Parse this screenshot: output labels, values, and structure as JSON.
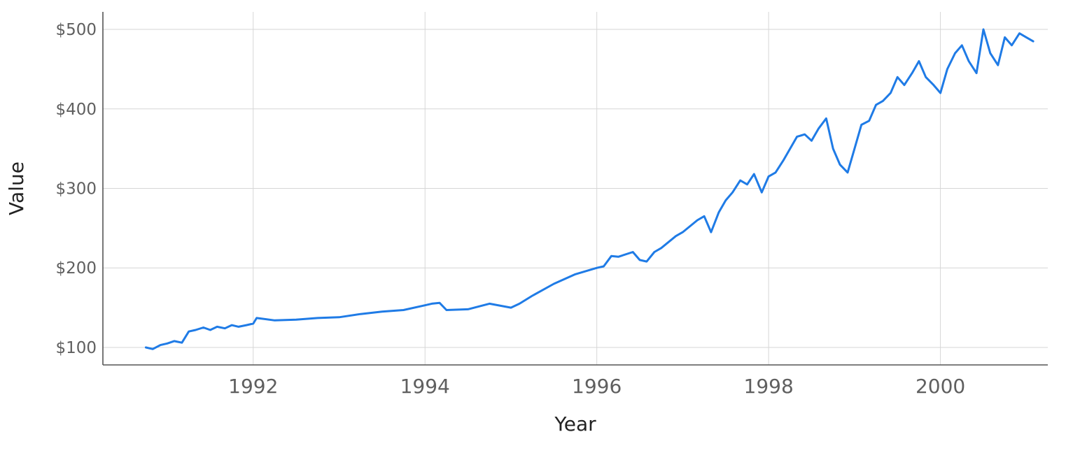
{
  "chart_data": {
    "type": "line",
    "title": "",
    "xlabel": "Year",
    "ylabel": "Value",
    "xlim": [
      1990.25,
      2001.25
    ],
    "ylim": [
      78,
      522
    ],
    "x_ticks": [
      1992,
      1994,
      1996,
      1998,
      2000
    ],
    "x_tick_labels": [
      "1992",
      "1994",
      "1996",
      "1998",
      "2000"
    ],
    "y_ticks": [
      100,
      200,
      300,
      400,
      500
    ],
    "y_tick_labels": [
      "$100",
      "$200",
      "$300",
      "$400",
      "$500"
    ],
    "grid": true,
    "legend": "none",
    "series": [
      {
        "color": "#1f7be6",
        "points": [
          [
            1990.75,
            100
          ],
          [
            1990.83,
            98
          ],
          [
            1990.92,
            103
          ],
          [
            1991.0,
            105
          ],
          [
            1991.08,
            108
          ],
          [
            1991.17,
            106
          ],
          [
            1991.25,
            120
          ],
          [
            1991.33,
            122
          ],
          [
            1991.42,
            125
          ],
          [
            1991.5,
            122
          ],
          [
            1991.58,
            126
          ],
          [
            1991.67,
            124
          ],
          [
            1991.75,
            128
          ],
          [
            1991.83,
            126
          ],
          [
            1991.92,
            128
          ],
          [
            1992.0,
            130
          ],
          [
            1992.04,
            137
          ],
          [
            1992.25,
            134
          ],
          [
            1992.5,
            135
          ],
          [
            1992.75,
            137
          ],
          [
            1993.0,
            138
          ],
          [
            1993.25,
            142
          ],
          [
            1993.5,
            145
          ],
          [
            1993.75,
            147
          ],
          [
            1994.0,
            153
          ],
          [
            1994.08,
            155
          ],
          [
            1994.17,
            156
          ],
          [
            1994.25,
            147
          ],
          [
            1994.5,
            148
          ],
          [
            1994.75,
            155
          ],
          [
            1995.0,
            150
          ],
          [
            1995.1,
            155
          ],
          [
            1995.25,
            165
          ],
          [
            1995.5,
            180
          ],
          [
            1995.75,
            192
          ],
          [
            1996.0,
            200
          ],
          [
            1996.08,
            202
          ],
          [
            1996.17,
            215
          ],
          [
            1996.25,
            214
          ],
          [
            1996.42,
            220
          ],
          [
            1996.5,
            210
          ],
          [
            1996.58,
            208
          ],
          [
            1996.67,
            220
          ],
          [
            1996.75,
            225
          ],
          [
            1996.92,
            240
          ],
          [
            1997.0,
            245
          ],
          [
            1997.17,
            260
          ],
          [
            1997.25,
            265
          ],
          [
            1997.33,
            245
          ],
          [
            1997.42,
            270
          ],
          [
            1997.5,
            285
          ],
          [
            1997.58,
            295
          ],
          [
            1997.67,
            310
          ],
          [
            1997.75,
            305
          ],
          [
            1997.83,
            318
          ],
          [
            1997.92,
            295
          ],
          [
            1998.0,
            315
          ],
          [
            1998.08,
            320
          ],
          [
            1998.17,
            335
          ],
          [
            1998.33,
            365
          ],
          [
            1998.42,
            368
          ],
          [
            1998.5,
            360
          ],
          [
            1998.58,
            375
          ],
          [
            1998.67,
            388
          ],
          [
            1998.75,
            350
          ],
          [
            1998.83,
            330
          ],
          [
            1998.92,
            320
          ],
          [
            1999.0,
            350
          ],
          [
            1999.08,
            380
          ],
          [
            1999.17,
            385
          ],
          [
            1999.25,
            405
          ],
          [
            1999.33,
            410
          ],
          [
            1999.42,
            420
          ],
          [
            1999.5,
            440
          ],
          [
            1999.58,
            430
          ],
          [
            1999.67,
            445
          ],
          [
            1999.75,
            460
          ],
          [
            1999.83,
            440
          ],
          [
            1999.92,
            430
          ],
          [
            2000.0,
            420
          ],
          [
            2000.08,
            450
          ],
          [
            2000.17,
            470
          ],
          [
            2000.25,
            480
          ],
          [
            2000.33,
            460
          ],
          [
            2000.42,
            445
          ],
          [
            2000.5,
            500
          ],
          [
            2000.58,
            470
          ],
          [
            2000.67,
            455
          ],
          [
            2000.75,
            490
          ],
          [
            2000.83,
            480
          ],
          [
            2000.92,
            495
          ],
          [
            2001.0,
            490
          ],
          [
            2001.08,
            485
          ]
        ]
      }
    ]
  }
}
